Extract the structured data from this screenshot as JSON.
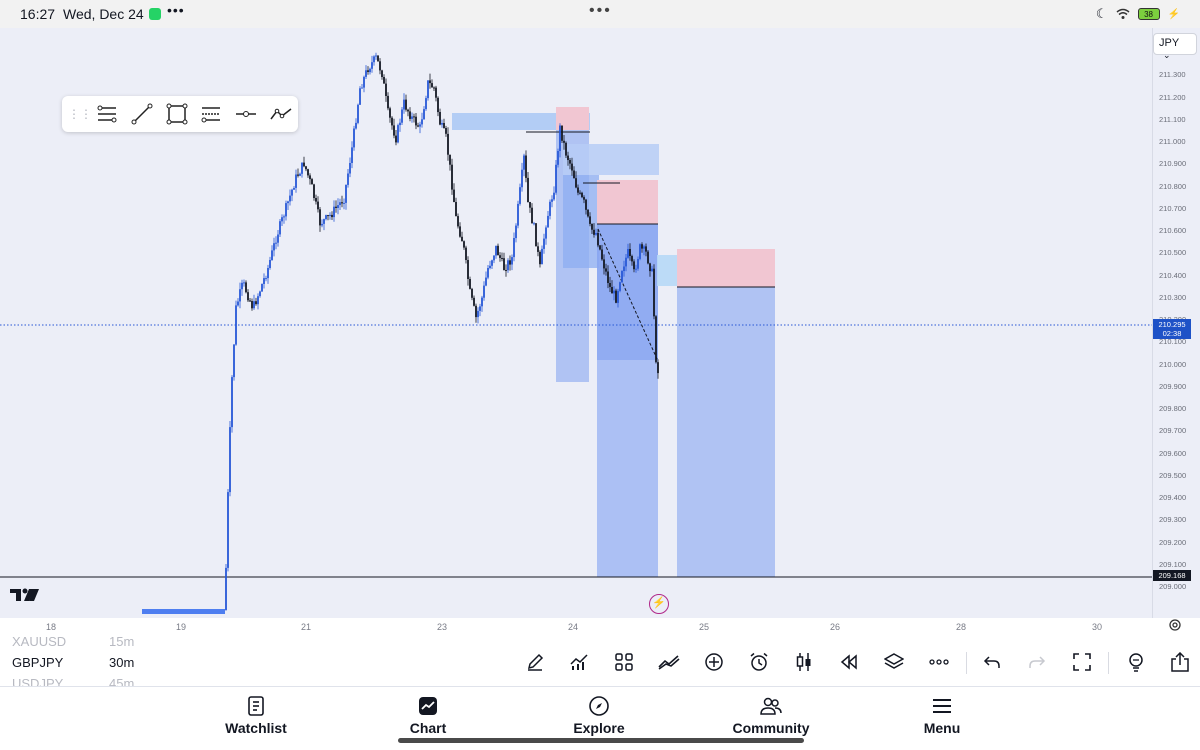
{
  "status_bar": {
    "time": "16:27",
    "date": "Wed, Dec 24",
    "more_dots": "•••",
    "center_dots": "•••",
    "battery_level": "38"
  },
  "chart": {
    "symbol_currency": "JPY",
    "current_price": "210.295",
    "countdown": "02:38",
    "level_price": "209.168",
    "price_axis": [
      "211.400",
      "211.300",
      "211.200",
      "211.100",
      "211.000",
      "210.900",
      "210.800",
      "210.700",
      "210.600",
      "210.500",
      "210.400",
      "210.300",
      "210.200",
      "210.100",
      "210.000",
      "209.900",
      "209.800",
      "209.700",
      "209.600",
      "209.500",
      "209.400",
      "209.300",
      "209.200",
      "209.100",
      "209.000"
    ],
    "time_axis": [
      "18",
      "19",
      "21",
      "23",
      "24",
      "25",
      "26",
      "28",
      "30"
    ]
  },
  "watchlist_strip": [
    {
      "symbol": "XAUUSD",
      "timeframe": "15m"
    },
    {
      "symbol": "GBPJPY",
      "timeframe": "30m"
    },
    {
      "symbol": "USDJPY",
      "timeframe": "45m"
    }
  ],
  "nav": {
    "watchlist": "Watchlist",
    "chart": "Chart",
    "explore": "Explore",
    "community": "Community",
    "menu": "Menu"
  },
  "colors": {
    "accent": "#1e52c7",
    "candle_up": "#2757d6",
    "candle_down": "#131722",
    "zone_blue": "#8fb0ff",
    "zone_red": "#f5b8c3"
  }
}
